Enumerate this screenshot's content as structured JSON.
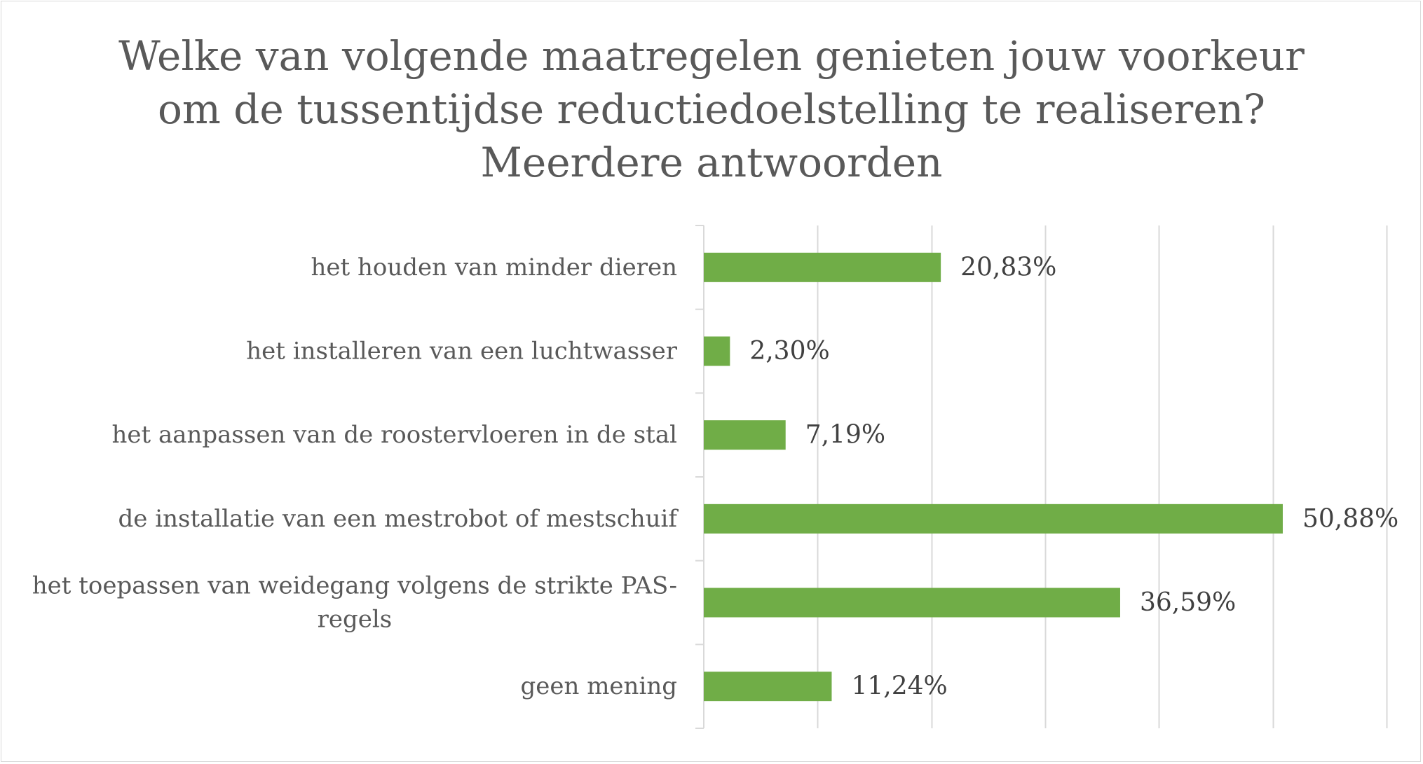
{
  "chart_data": {
    "type": "bar",
    "orientation": "horizontal",
    "title_lines": [
      "Welke van volgende maatregelen genieten jouw voorkeur",
      "om de tussentijdse reductiedoelstelling te realiseren?",
      "Meerdere antwoorden"
    ],
    "categories": [
      [
        "het houden van minder dieren"
      ],
      [
        "het installeren van een luchtwasser"
      ],
      [
        "het aanpassen van de roostervloeren in de stal"
      ],
      [
        "de installatie van een mestrobot of mestschuif"
      ],
      [
        "het toepassen van weidegang volgens de strikte PAS-",
        "regels"
      ],
      [
        "geen mening"
      ]
    ],
    "values": [
      20.83,
      2.3,
      7.19,
      50.88,
      36.59,
      11.24
    ],
    "data_labels": [
      "20,83%",
      "2,30%",
      "7,19%",
      "50,88%",
      "36,59%",
      "11,24%"
    ],
    "xlim": [
      0,
      60
    ],
    "x_gridline_step": 10,
    "grid": true,
    "legend": "none",
    "bar_color": "#70ad47",
    "gridline_color": "#d9d9d9"
  }
}
